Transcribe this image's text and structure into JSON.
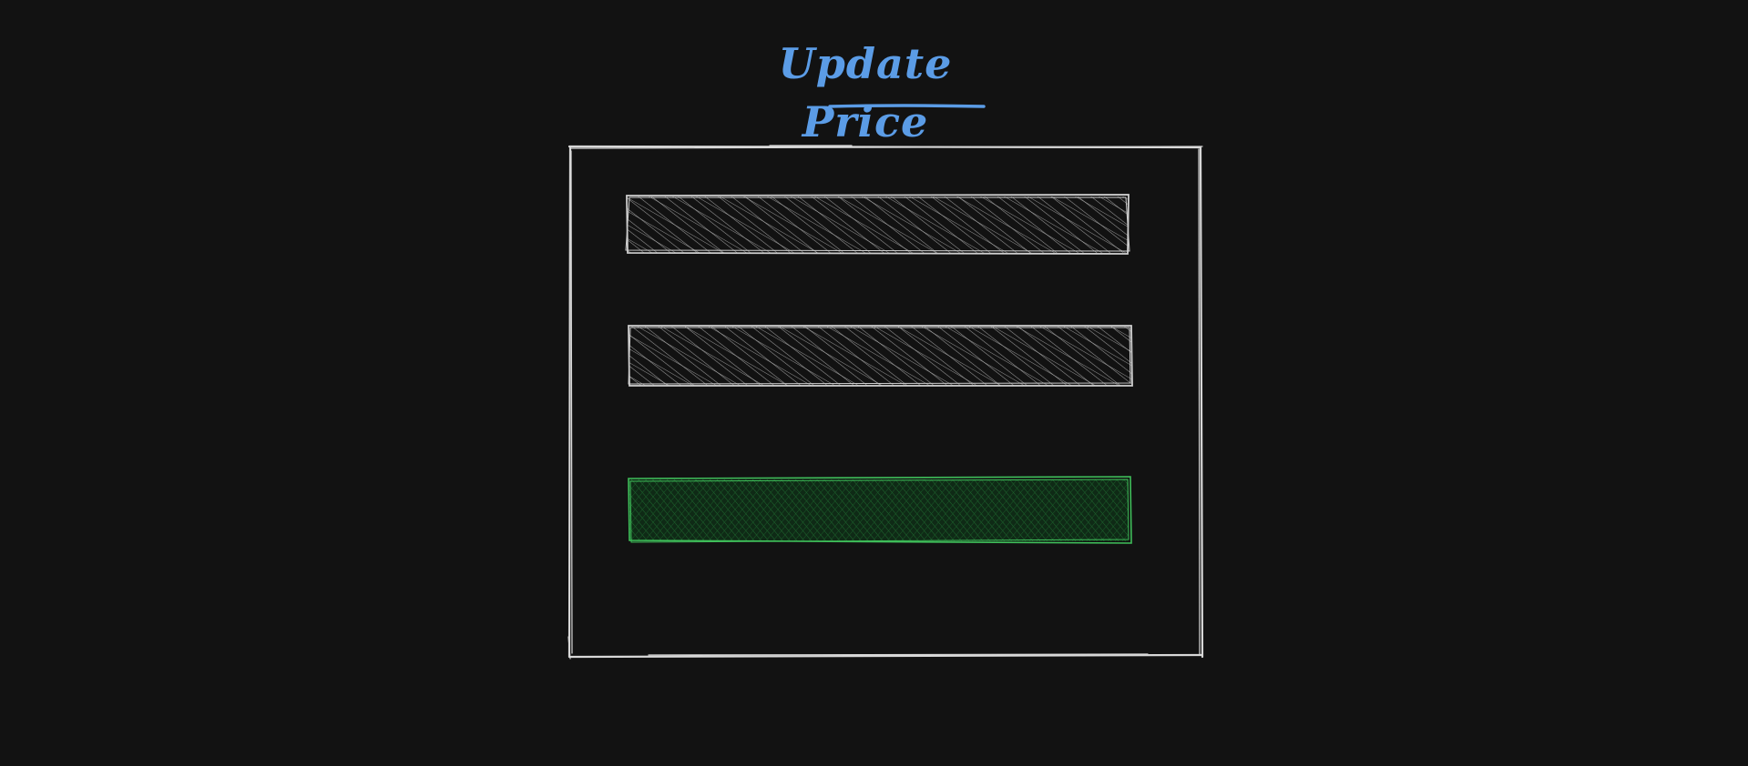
{
  "title": "Update Price",
  "colors": {
    "background": "#121212",
    "title": "#5b9ce6",
    "frame_stroke": "#d8d8d8",
    "field_stroke": "#cfcfcf",
    "field_hatch": "#9a9a9a",
    "button_stroke": "#3fbf5a",
    "button_hatch": "#1f6b30"
  },
  "form": {
    "fields": [
      {
        "name": "field-1",
        "type": "input"
      },
      {
        "name": "field-2",
        "type": "input"
      }
    ],
    "submit": {
      "name": "submit-button",
      "type": "button"
    }
  }
}
